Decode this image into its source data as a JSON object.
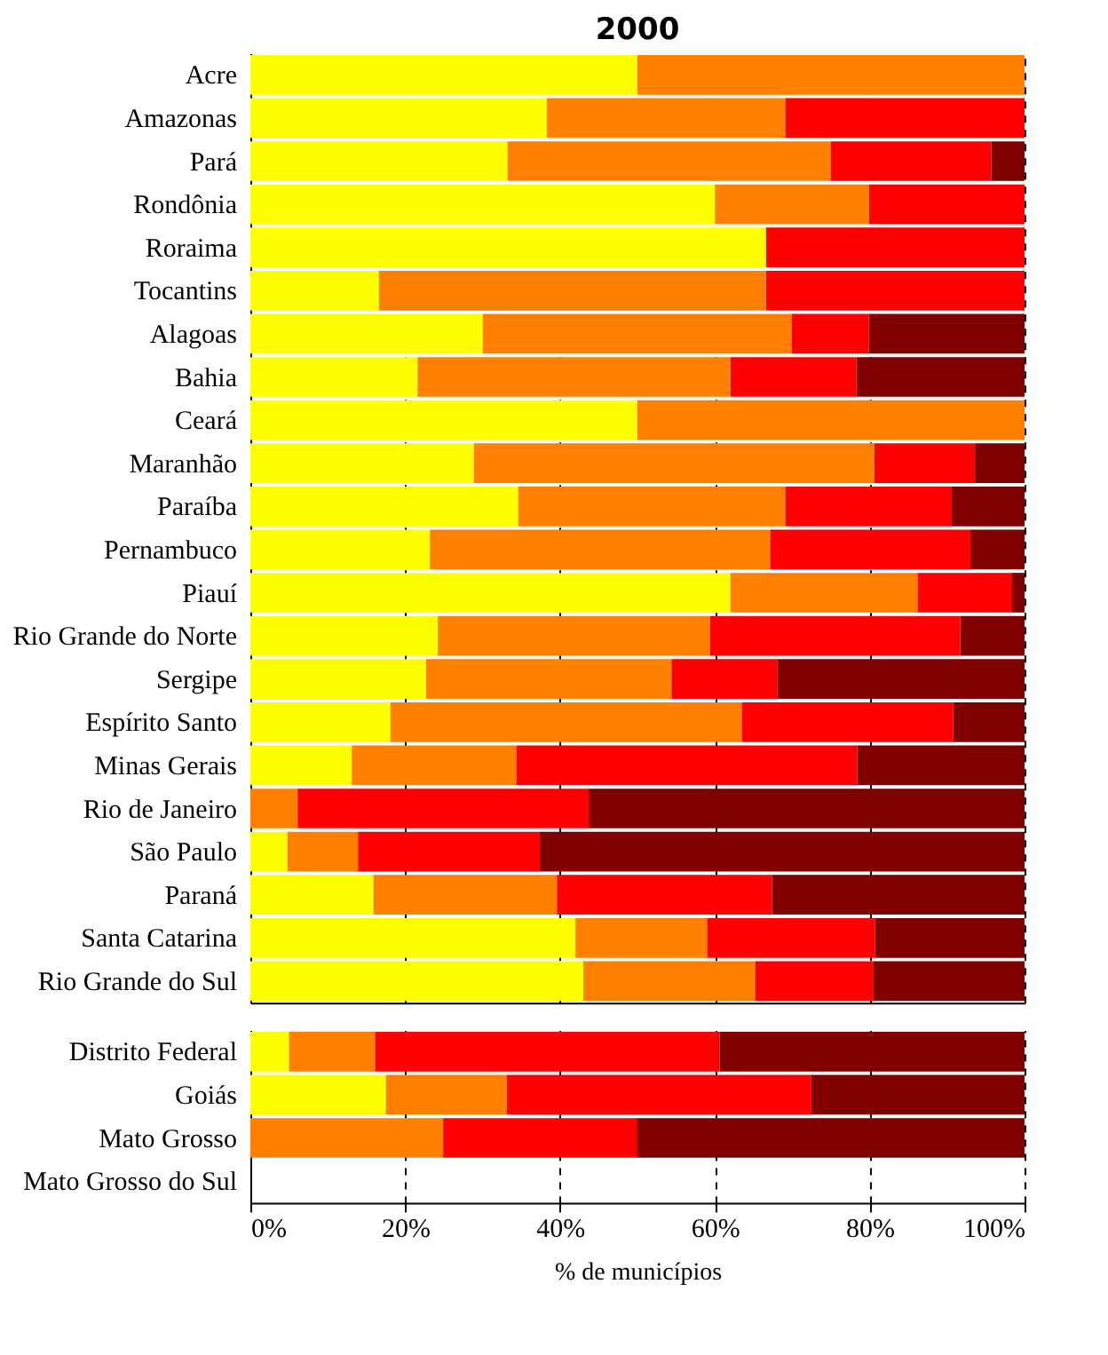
{
  "chart_data": [
    {
      "type": "bar",
      "title": "2000",
      "orientation": "horizontal",
      "stacked": true,
      "grid": "x",
      "tick_labels": "y",
      "categories": [
        "Acre",
        "Amazonas",
        "Pará",
        "Rondônia",
        "Roraima",
        "Tocantins",
        "Alagoas",
        "Bahia",
        "Ceará",
        "Maranhão",
        "Paraíba",
        "Pernambuco",
        "Piauí",
        "Rio Grande do Norte",
        "Sergipe",
        "Espírito Santo",
        "Minas Gerais",
        "Rio de Janeiro",
        "São Paulo",
        "Paraná",
        "Santa Catarina",
        "Rio Grande do Sul"
      ],
      "xlim": [
        0,
        100
      ],
      "xticks": [
        {
          "value": 0,
          "label": null
        },
        {
          "value": 20,
          "label": null
        },
        {
          "value": 40,
          "label": null
        },
        {
          "value": 60,
          "label": null
        },
        {
          "value": 80,
          "label": null
        },
        {
          "value": 100,
          "label": null
        }
      ],
      "series": [
        {
          "color": "#ffff00",
          "values": [
            50,
            38.3,
            33.2,
            60,
            66.6,
            16.6,
            30,
            21.6,
            50,
            28.9,
            34.6,
            23.2,
            62,
            24.2,
            22.7,
            18.1,
            13.1,
            0,
            4.8,
            15.9,
            42,
            43
          ]
        },
        {
          "color": "#ff8000",
          "values": [
            50,
            30.8,
            41.8,
            19.9,
            0,
            50,
            39.9,
            40.4,
            50,
            51.7,
            34.5,
            44,
            24.2,
            35.2,
            31.7,
            45.4,
            21.3,
            6.1,
            9.1,
            23.7,
            17,
            22.2
          ]
        },
        {
          "color": "#ff0000",
          "values": [
            0,
            30.9,
            20.7,
            20.1,
            33.4,
            33.4,
            10,
            16.3,
            0,
            13,
            21.5,
            25.8,
            12.2,
            32.3,
            13.7,
            27.3,
            44,
            37.6,
            23.5,
            27.8,
            21.7,
            15.3
          ]
        },
        {
          "color": "#800000",
          "values": [
            0,
            0,
            4.3,
            0,
            0,
            0,
            20.1,
            21.7,
            0,
            6.4,
            9.4,
            7,
            1.6,
            8.3,
            31.9,
            9.2,
            21.6,
            56.3,
            62.6,
            32.6,
            19.3,
            19.5
          ]
        }
      ]
    },
    {
      "type": "bar",
      "xlabel": "% de municípios",
      "orientation": "horizontal",
      "stacked": true,
      "grid": "x",
      "categories": [
        "Distrito Federal",
        "Goiás",
        "Mato Grosso",
        "Mato Grosso do Sul"
      ],
      "xlim": [
        0,
        100
      ],
      "xticks": [
        {
          "value": 0,
          "label": "0%"
        },
        {
          "value": 20,
          "label": "20%"
        },
        {
          "value": 40,
          "label": "40%"
        },
        {
          "value": 60,
          "label": "60%"
        },
        {
          "value": 80,
          "label": "80%"
        },
        {
          "value": 100,
          "label": "100%"
        }
      ],
      "series": [
        {
          "color": "#ffff00",
          "values": [
            5,
            17.5,
            0,
            null
          ]
        },
        {
          "color": "#ff8000",
          "values": [
            11.1,
            15.6,
            24.9,
            null
          ]
        },
        {
          "color": "#ff0000",
          "values": [
            44.5,
            39.3,
            25,
            null
          ]
        },
        {
          "color": "#800000",
          "values": [
            39.4,
            27.6,
            50.1,
            null
          ]
        }
      ]
    }
  ]
}
